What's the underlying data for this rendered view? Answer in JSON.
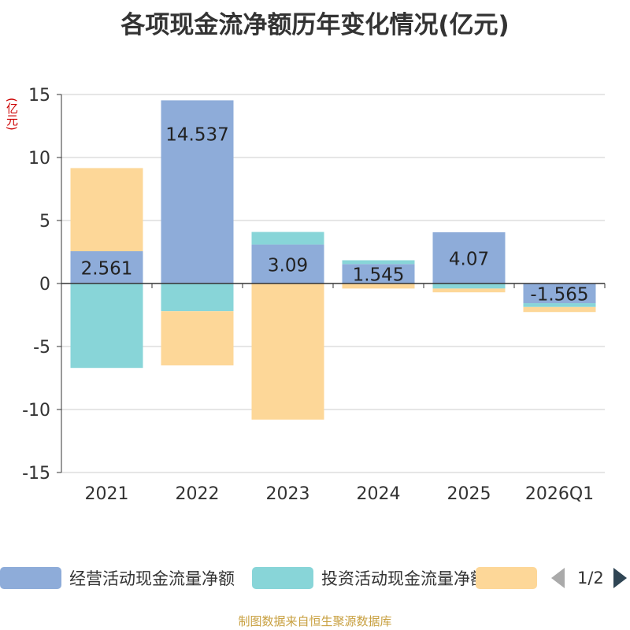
{
  "title": "各项现金流净额历年变化情况(亿元)",
  "unit_label": "(亿元)",
  "source": "制图数据来自恒生聚源数据库",
  "legend": {
    "items": [
      {
        "label": "经营活动现金流量净额",
        "color": "#8eacd9"
      },
      {
        "label": "投资活动现金流量净额",
        "color": "#88d5d8"
      },
      {
        "label": "",
        "color": "#fdd798"
      }
    ],
    "page_text": "1/2"
  },
  "chart_data": {
    "type": "bar",
    "stacked": true,
    "categories": [
      "2021",
      "2022",
      "2023",
      "2024",
      "2025",
      "2026Q1"
    ],
    "ylim": [
      -15,
      15
    ],
    "yticks": [
      15,
      10,
      5,
      0,
      -5,
      -10,
      -15
    ],
    "grid": true,
    "series": [
      {
        "name": "经营活动现金流量净额",
        "color": "#8eacd9",
        "values": [
          2.561,
          14.537,
          3.09,
          1.545,
          4.07,
          -1.565
        ],
        "labels": [
          "2.561",
          "14.537",
          "3.09",
          "1.545",
          "4.07",
          "-1.565"
        ]
      },
      {
        "name": "投资活动现金流量净额",
        "color": "#88d5d8",
        "values": [
          -6.7,
          -2.2,
          1.0,
          0.3,
          -0.4,
          -0.3
        ]
      },
      {
        "color": "#fdd798",
        "values": [
          6.6,
          -4.3,
          -10.8,
          -0.4,
          -0.3,
          -0.4
        ]
      }
    ]
  }
}
